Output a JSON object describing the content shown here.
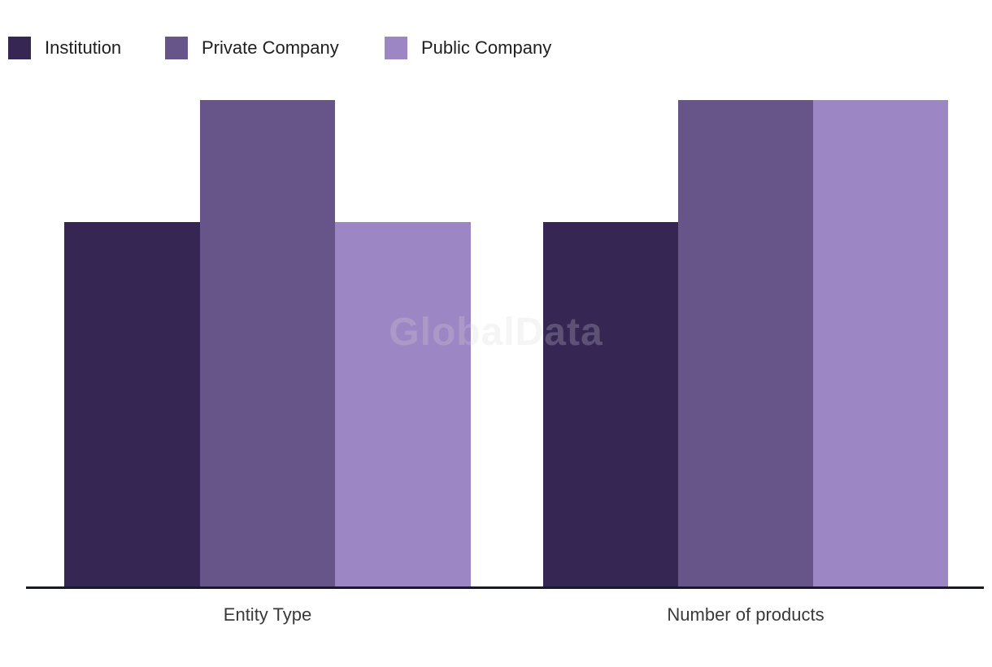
{
  "watermark": {
    "text": "GlobalData"
  },
  "legend": {
    "position": "top-left"
  },
  "colors": {
    "institution": "#352654",
    "private_company": "#675489",
    "public_company": "#9C86C3",
    "axis_line": "#171A2C",
    "axis_label_text": "#3A3A3A",
    "legend_text": "#1F1F1F",
    "watermark_text": "#D6D6D6"
  },
  "chart_data": {
    "type": "bar",
    "categories": [
      "Entity Type",
      "Number of products"
    ],
    "series": [
      {
        "name": "Institution",
        "color": "#352654",
        "values": [
          3,
          3
        ]
      },
      {
        "name": "Private Company",
        "color": "#675489",
        "values": [
          4,
          4
        ]
      },
      {
        "name": "Public Company",
        "color": "#9C86C3",
        "values": [
          3,
          4
        ]
      }
    ],
    "title": "",
    "xlabel": "",
    "ylabel": "",
    "ylim": [
      0,
      4
    ],
    "grid": false,
    "y_axis_shown": false,
    "data_labels_shown": false,
    "legend_position": "top-left",
    "legend_entries": [
      "Institution",
      "Private Company",
      "Public Company"
    ]
  }
}
